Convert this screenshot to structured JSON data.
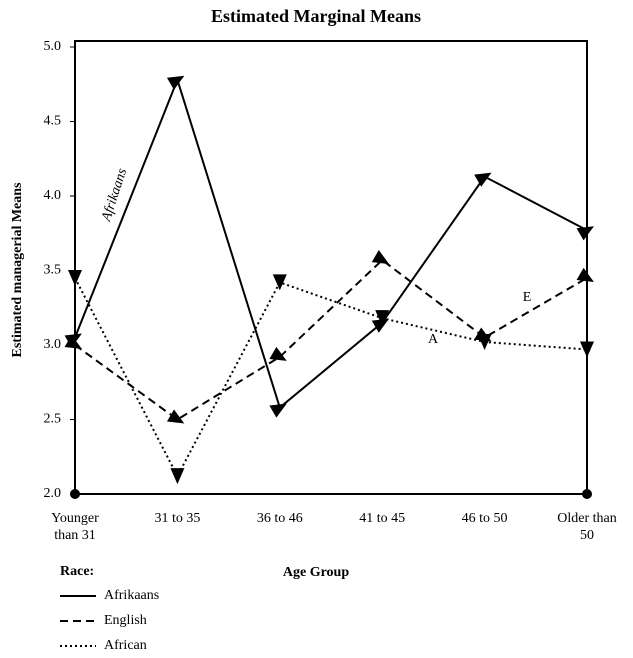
{
  "chart_data": {
    "type": "line",
    "title": "Estimated Marginal Means",
    "x_label": "Age Group",
    "y_label": "Estimated managerial Means",
    "categories": [
      "Younger than 31",
      "31 to 35",
      "36 to 46",
      "41 to 45",
      "46 to 50",
      "Older than 50"
    ],
    "series": [
      {
        "name": "Afrikaans",
        "color": "#000000",
        "style": "solid",
        "values": [
          3.05,
          4.78,
          2.58,
          3.15,
          4.13,
          3.77
        ]
      },
      {
        "name": "English",
        "color": "#000000",
        "style": "dashed",
        "values": [
          3.0,
          2.5,
          2.92,
          3.57,
          3.05,
          3.45
        ]
      },
      {
        "name": "African",
        "color": "#000000",
        "style": "dotted",
        "values": [
          3.45,
          2.12,
          3.42,
          3.18,
          3.02,
          2.97
        ]
      }
    ],
    "ylim": [
      2.0,
      5.0
    ],
    "yticks": [
      {
        "value": 2,
        "label": "2.0"
      },
      2.5,
      {
        "value": 3,
        "label": "3.0"
      },
      3.5,
      {
        "value": 4,
        "label": "4.0"
      },
      4.5,
      {
        "value": 5,
        "label": "5.0"
      }
    ],
    "legend_title": "Race:",
    "annotations": [
      "Afrikaans",
      "A",
      "E"
    ]
  }
}
